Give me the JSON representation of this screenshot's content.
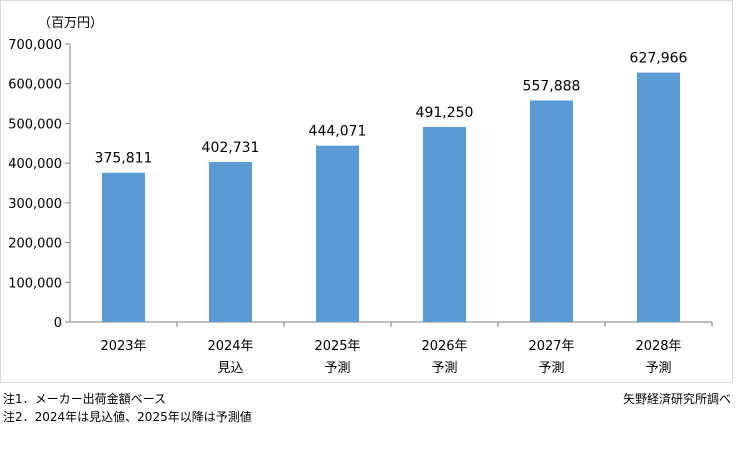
{
  "chart_data": {
    "type": "bar",
    "unit_label": "（百万円）",
    "categories": [
      "2023年",
      "2024年",
      "2025年",
      "2026年",
      "2027年",
      "2028年"
    ],
    "category_sublabels": [
      "",
      "見込",
      "予測",
      "予測",
      "予測",
      "予測"
    ],
    "values": [
      375811,
      402731,
      444071,
      491250,
      557888,
      627966
    ],
    "value_labels": [
      "375,811",
      "402,731",
      "444,071",
      "491,250",
      "557,888",
      "627,966"
    ],
    "y_ticks": [
      "0",
      "100,000",
      "200,000",
      "300,000",
      "400,000",
      "500,000",
      "600,000",
      "700,000"
    ],
    "ylim": [
      0,
      700000
    ],
    "grid": false,
    "legend": "none",
    "bar_color": "#5b9bd5"
  },
  "notes": {
    "note1": "注1．メーカー出荷金額ベース",
    "note2": "注2．2024年は見込値、2025年以降は予測値",
    "source": "矢野経済研究所調べ"
  }
}
